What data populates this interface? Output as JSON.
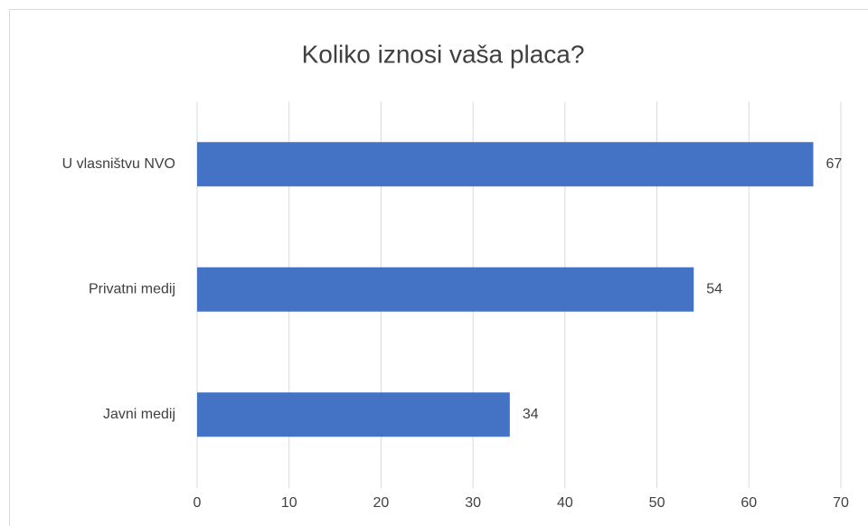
{
  "chart_data": {
    "type": "bar",
    "orientation": "horizontal",
    "title": "Koliko iznosi vaša placa?",
    "categories": [
      "U vlasništvu NVO",
      "Privatni medij",
      "Javni medij"
    ],
    "values": [
      67,
      54,
      34
    ],
    "color": "#4472c4",
    "xlim": [
      0,
      70
    ],
    "xticks": [
      0,
      10,
      20,
      30,
      40,
      50,
      60,
      70
    ],
    "grid": true
  }
}
